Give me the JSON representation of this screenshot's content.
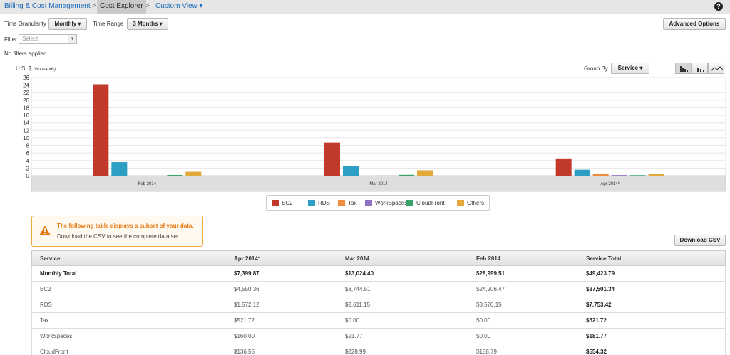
{
  "breadcrumb": {
    "root": "Billing & Cost Management",
    "sep1": ">",
    "current": "Cost Explorer",
    "sep2": ">",
    "view": "Custom View ▾"
  },
  "help_icon": "help-icon",
  "controls": {
    "granularity_label": "Time Granularity",
    "granularity_value": "Monthly ▾",
    "range_label": "Time Range",
    "range_value": "3 Months ▾",
    "advanced_options": "Advanced Options",
    "filter_label": "Filter",
    "filter_placeholder": "Select",
    "no_filters": "No filters applied",
    "group_by_label": "Group By",
    "group_by_value": "Service ▾",
    "download_csv": "Download CSV"
  },
  "chart_data": {
    "type": "bar",
    "ylabel": "U.S. $",
    "ylabel_unit": "(thousands)",
    "ylim": [
      0,
      26
    ],
    "yticks": [
      0,
      2,
      4,
      6,
      8,
      10,
      12,
      14,
      16,
      18,
      20,
      22,
      24,
      26
    ],
    "grid": true,
    "categories": [
      "Feb 2014",
      "Mar 2014",
      "Apr 2014*"
    ],
    "series": [
      {
        "name": "EC2",
        "color": "#c0392b",
        "values": [
          24.21,
          8.74,
          4.55
        ]
      },
      {
        "name": "RDS",
        "color": "#2e9fc4",
        "values": [
          3.57,
          2.61,
          1.57
        ]
      },
      {
        "name": "Tax",
        "color": "#f08c3c",
        "values": [
          0.0,
          0.0,
          0.52
        ]
      },
      {
        "name": "WorkSpaces",
        "color": "#8e6fc1",
        "values": [
          0.0,
          0.02,
          0.16
        ]
      },
      {
        "name": "CloudFront",
        "color": "#3aa36a",
        "values": [
          0.19,
          0.23,
          0.14
        ]
      },
      {
        "name": "Others",
        "color": "#e2a83a",
        "values": [
          1.03,
          1.42,
          0.45
        ]
      }
    ],
    "legend": "bottom"
  },
  "alert": {
    "title": "The following table displays a subset of your data.",
    "body": "Download the CSV to see the complete data set."
  },
  "table": {
    "headers": [
      "Service",
      "Apr 2014*",
      "Mar 2014",
      "Feb 2014",
      "Service Total"
    ],
    "rows": [
      {
        "cells": [
          "Monthly Total",
          "$7,399.87",
          "$13,024.40",
          "$28,999.51",
          "$49,423.79"
        ],
        "bold": true
      },
      {
        "cells": [
          "EC2",
          "$4,550.36",
          "$8,744.51",
          "$24,206.47",
          "$37,501.34"
        ],
        "bold": false
      },
      {
        "cells": [
          "RDS",
          "$1,572.12",
          "$2,611.15",
          "$3,570.15",
          "$7,753.42"
        ],
        "bold": false
      },
      {
        "cells": [
          "Tax",
          "$521.72",
          "$0.00",
          "$0.00",
          "$521.72"
        ],
        "bold": false
      },
      {
        "cells": [
          "WorkSpaces",
          "$160.00",
          "$21.77",
          "$0.00",
          "$181.77"
        ],
        "bold": false
      },
      {
        "cells": [
          "CloudFront",
          "$136.55",
          "$228.99",
          "$188.79",
          "$554.32"
        ],
        "bold": false
      }
    ]
  }
}
